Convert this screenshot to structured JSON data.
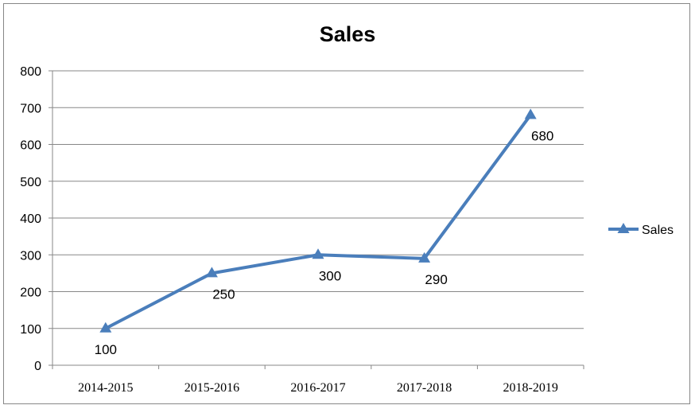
{
  "chart_data": {
    "type": "line",
    "title": "Sales",
    "categories": [
      "2014-2015",
      "2015-2016",
      "2016-2017",
      "2017-2018",
      "2018-2019"
    ],
    "series": [
      {
        "name": "Sales",
        "values": [
          100,
          250,
          300,
          290,
          680
        ],
        "color": "#4a7ebb"
      }
    ],
    "ylim": [
      0,
      800
    ],
    "yticks": [
      "0",
      "100",
      "200",
      "300",
      "400",
      "500",
      "600",
      "700",
      "800"
    ],
    "grid": true,
    "legend": "right",
    "marker": "triangle"
  }
}
